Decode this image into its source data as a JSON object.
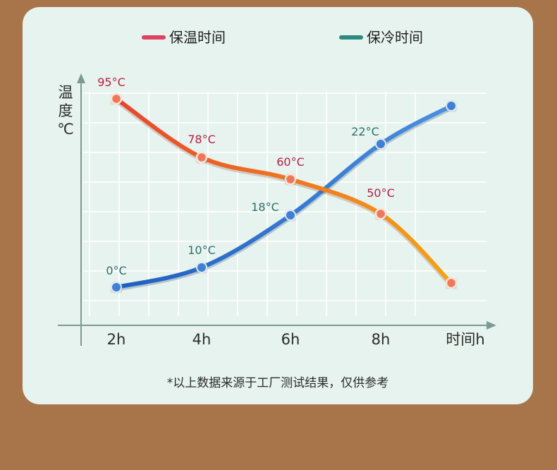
{
  "chart_data": {
    "type": "line",
    "x": [
      "2h",
      "4h",
      "6h",
      "8h",
      ""
    ],
    "xlabel": "时间h",
    "ylabel_lines": [
      "温",
      "度",
      "℃"
    ],
    "series": [
      {
        "name": "保温时间",
        "values": [
          95,
          78,
          60,
          50,
          12
        ],
        "point_labels": [
          "95°C",
          "78°C",
          "60°C",
          "50°C",
          ""
        ],
        "color_start": "#e8452e",
        "color_end": "#f5a316",
        "point_color": "#f0785a"
      },
      {
        "name": "保冷时间",
        "values": [
          0,
          10,
          18,
          22,
          26
        ],
        "point_labels": [
          "0°C",
          "10°C",
          "18°C",
          "22°C",
          ""
        ],
        "color_start": "#1f5fc0",
        "color_end": "#4a8fe0",
        "point_color": "#3f7fd6"
      }
    ],
    "legend_position": "top",
    "grid": true
  },
  "footnote": "*以上数据来源于工厂测试结果，仅供参考",
  "colors": {
    "warm_label": "#b81f45",
    "cold_label": "#2e6e68",
    "axis": "#7a9a92",
    "grid": "#ffffff",
    "legend_warm": "#e0415e",
    "legend_cold": "#2b8a80"
  }
}
